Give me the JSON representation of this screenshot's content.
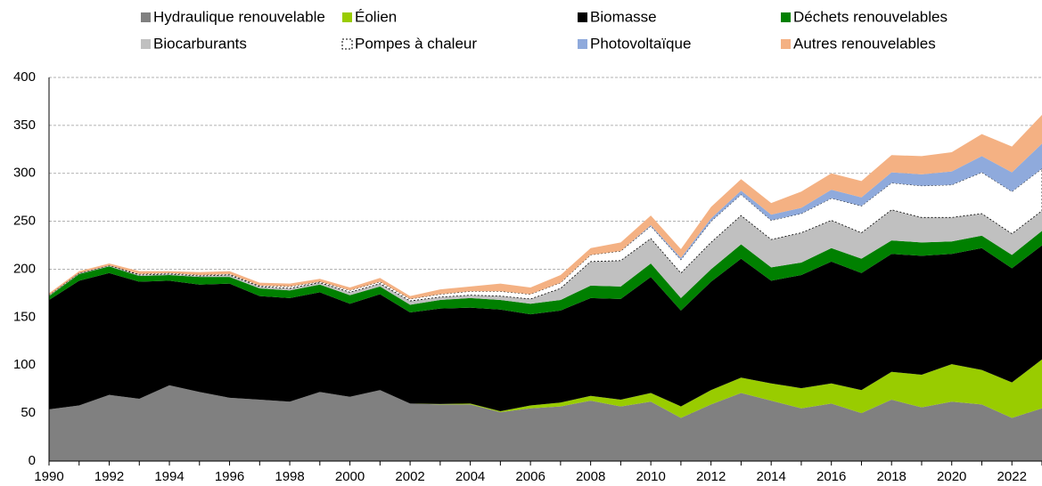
{
  "chart_data": {
    "type": "stacked_area",
    "x": [
      1990,
      1991,
      1992,
      1993,
      1994,
      1995,
      1996,
      1997,
      1998,
      1999,
      2000,
      2001,
      2002,
      2003,
      2004,
      2005,
      2006,
      2007,
      2008,
      2009,
      2010,
      2011,
      2012,
      2013,
      2014,
      2015,
      2016,
      2017,
      2018,
      2019,
      2020,
      2021,
      2022,
      2023
    ],
    "xlim": [
      1990,
      2023
    ],
    "xticks": [
      1990,
      1992,
      1994,
      1996,
      1998,
      2000,
      2002,
      2004,
      2006,
      2008,
      2010,
      2012,
      2014,
      2016,
      2018,
      2020,
      2022
    ],
    "ylim": [
      0,
      400
    ],
    "yticks": [
      0,
      50,
      100,
      150,
      200,
      250,
      300,
      350,
      400
    ],
    "grid": true,
    "series": [
      {
        "name": "Hydraulique renouvelable",
        "color": "#808080",
        "values": [
          54,
          58,
          69,
          65,
          79,
          72,
          66,
          64,
          62,
          72,
          67,
          74,
          60,
          59,
          59,
          51,
          55,
          57,
          63,
          57,
          62,
          45,
          59,
          71,
          63,
          55,
          60,
          50,
          64,
          56,
          62,
          59,
          45,
          55
        ]
      },
      {
        "name": "Éolien",
        "color": "#99cc00",
        "values": [
          0,
          0,
          0,
          0,
          0,
          0,
          0,
          0,
          0,
          0,
          0,
          0,
          0,
          0.5,
          1,
          1,
          3,
          4,
          5,
          7,
          9,
          12,
          15,
          16,
          18,
          21,
          21,
          24,
          29,
          34,
          39,
          36,
          37,
          51
        ]
      },
      {
        "name": "Biomasse",
        "color": "#000000",
        "values": [
          114,
          130,
          127,
          122,
          109,
          112,
          119,
          108,
          108,
          104,
          97,
          100,
          95,
          99.5,
          100,
          106,
          95,
          96,
          102,
          105,
          121,
          100,
          113,
          124,
          107,
          118,
          127,
          122,
          123,
          124,
          115,
          127,
          119,
          119
        ]
      },
      {
        "name": "Déchets renouvelables",
        "color": "#008000",
        "values": [
          4,
          7,
          7,
          6,
          6,
          8,
          7,
          8,
          8,
          8,
          9,
          8,
          8,
          9,
          10,
          10,
          11,
          11,
          13,
          13,
          14,
          13,
          13,
          15,
          14,
          13,
          14,
          15,
          14,
          14,
          13,
          13,
          14,
          15
        ]
      },
      {
        "name": "Biocarburants",
        "color": "#c0c0c0",
        "values": [
          1,
          1,
          1,
          1,
          1,
          1,
          2,
          2,
          2,
          2,
          3,
          3,
          4,
          3,
          3,
          4,
          5,
          12,
          25,
          27,
          26,
          26,
          28,
          30,
          29,
          31,
          29,
          27,
          32,
          26,
          25,
          23,
          22,
          21
        ]
      },
      {
        "name": "Pompes à chaleur",
        "color": "#ffffff",
        "values": [
          0,
          0,
          0,
          1,
          1,
          1,
          1,
          1,
          2,
          1,
          2,
          2,
          2,
          3,
          4,
          5,
          5,
          6,
          7,
          10,
          13,
          14,
          22,
          22,
          20,
          20,
          23,
          28,
          28,
          33,
          34,
          43,
          44,
          44
        ]
      },
      {
        "name": "Photovoltaïque",
        "color": "#8faadc",
        "values": [
          0,
          0,
          0,
          0,
          0,
          0,
          0,
          0,
          0,
          0,
          0,
          0,
          0,
          0,
          0,
          0,
          0,
          0,
          0,
          0,
          1,
          2,
          3,
          4,
          6,
          6,
          9,
          9,
          11,
          12,
          14,
          17,
          20,
          26
        ]
      },
      {
        "name": "Autres renouvelables",
        "color": "#f4b183",
        "values": [
          2,
          2,
          2,
          3,
          2,
          3,
          3,
          3,
          3,
          3,
          3,
          4,
          3,
          5,
          5,
          8,
          7,
          8,
          7,
          9,
          10,
          9,
          12,
          12,
          12,
          17,
          17,
          17,
          18,
          19,
          20,
          23,
          27,
          30
        ]
      }
    ]
  }
}
